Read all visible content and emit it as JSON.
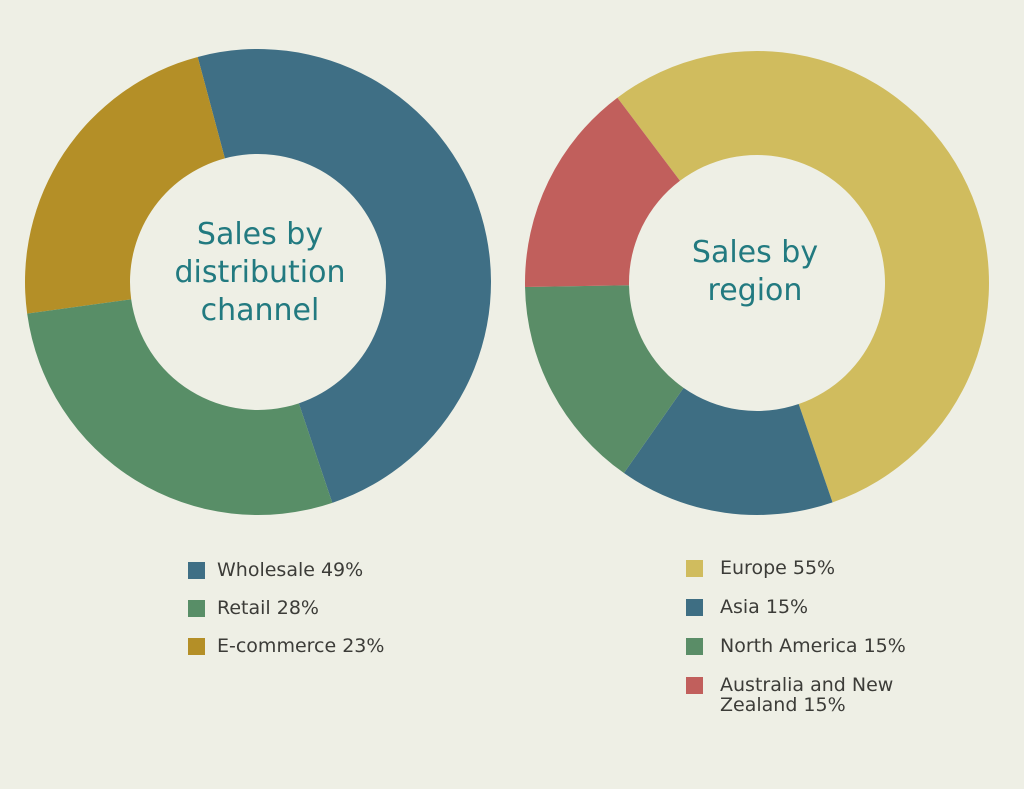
{
  "chart_data": [
    {
      "type": "pie",
      "variant": "donut",
      "title": "Sales by distribution channel",
      "slices": [
        {
          "label": "Wholesale 49%",
          "value": 49,
          "color": "#3f6f85"
        },
        {
          "label": "Retail 28%",
          "value": 28,
          "color": "#588e67"
        },
        {
          "label": "E-commerce 23%",
          "value": 23,
          "color": "#b48f27"
        }
      ],
      "start_angle_deg": -15,
      "draw_order": [
        0,
        2,
        1
      ],
      "legend_position": "bottom"
    },
    {
      "type": "pie",
      "variant": "donut",
      "title": "Sales by region",
      "slices": [
        {
          "label": "Europe 55%",
          "value": 55,
          "color": "#d0bc5e"
        },
        {
          "label": "Asia 15%",
          "value": 15,
          "color": "#3e6e83"
        },
        {
          "label": "North America 15%",
          "value": 15,
          "color": "#5a8d67"
        },
        {
          "label": "Australia and New Zealand 15%",
          "value": 15,
          "color": "#c15f5c"
        }
      ],
      "start_angle_deg": -37,
      "draw_order": [
        0,
        1,
        2,
        3
      ],
      "legend_position": "bottom"
    }
  ]
}
